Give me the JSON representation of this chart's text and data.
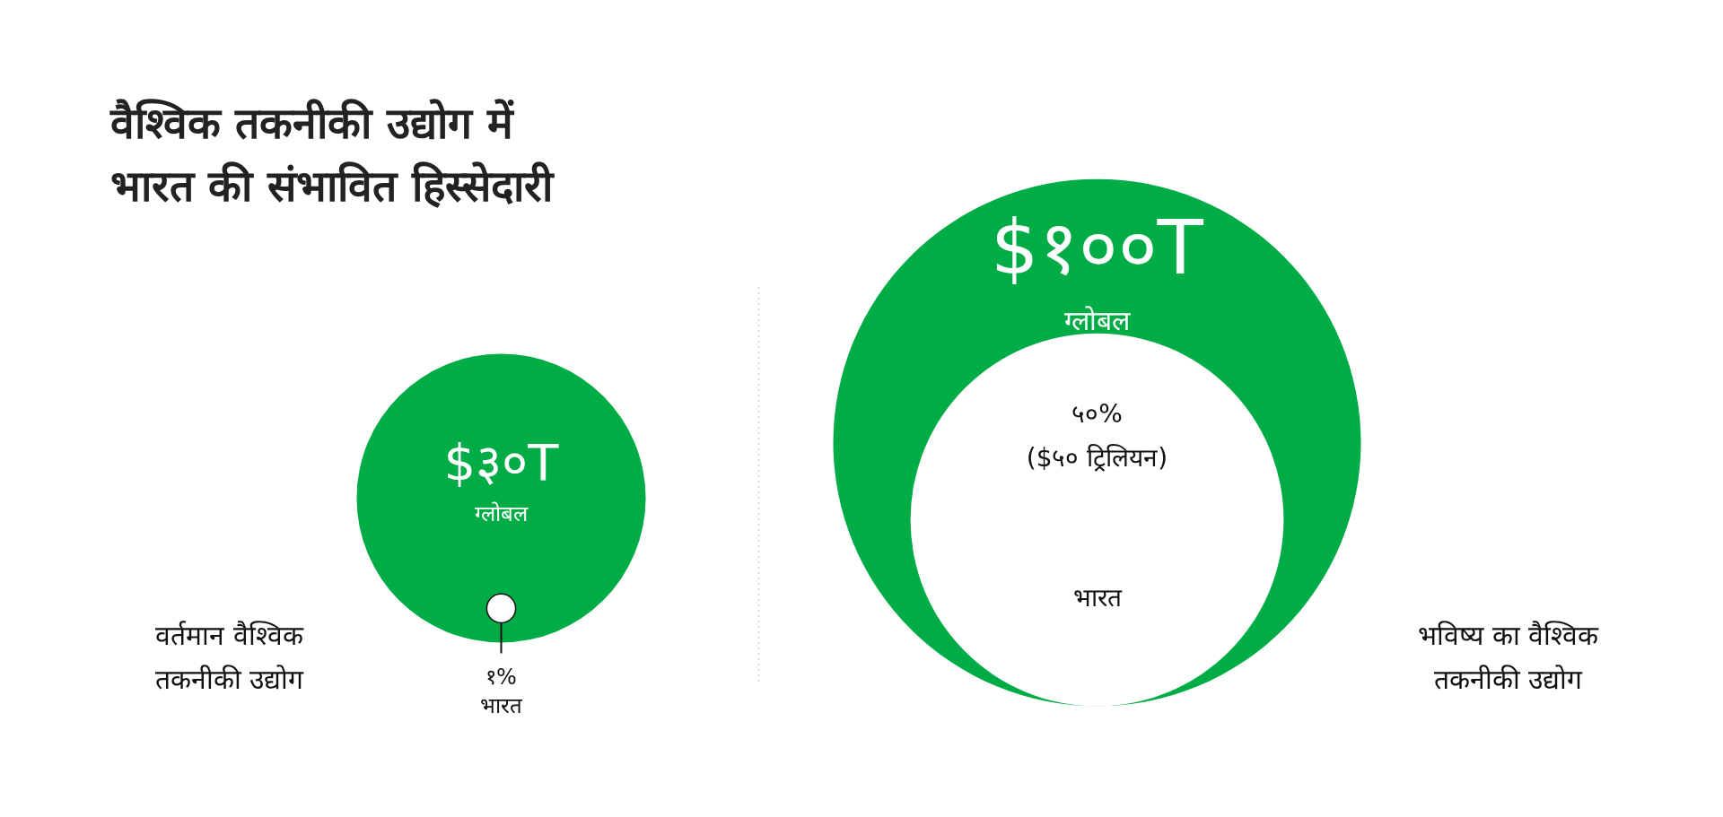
{
  "chart_data": {
    "type": "other",
    "title": "वैश्विक तकनीकी उद्योग में\nभारत की संभावित हिस्सेदारी",
    "categories": [
      "वर्तमान वैश्विक\nतकनीकी उद्योग",
      "भविष्य का वैश्विक\nतकनीकी उद्योग"
    ],
    "series": [
      {
        "name": "ग्लोबल",
        "color": "#00ac46",
        "values": [
          30,
          100
        ],
        "value_labels": [
          "$३०T",
          "$१००T"
        ]
      },
      {
        "name": "भारत",
        "color": "#ffffff",
        "values": [
          1,
          50
        ],
        "value_labels": [
          "१%",
          "५०%\n($५० ट्रिलियन)"
        ]
      }
    ]
  }
}
